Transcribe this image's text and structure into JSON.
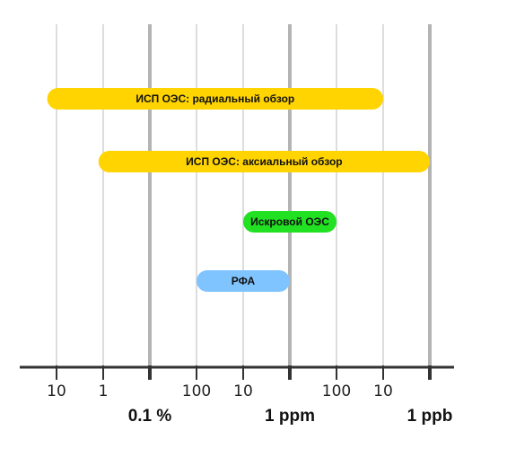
{
  "chart_data": {
    "type": "range-bar",
    "title": "",
    "xlabel": "",
    "ylabel": "",
    "x_axis": {
      "scale": "log-descending",
      "ticks": [
        {
          "label": "10",
          "kind": "minor"
        },
        {
          "label": "1",
          "kind": "minor"
        },
        {
          "label": "",
          "kind": "major"
        },
        {
          "label": "100",
          "kind": "minor"
        },
        {
          "label": "10",
          "kind": "minor"
        },
        {
          "label": "",
          "kind": "major"
        },
        {
          "label": "100",
          "kind": "minor"
        },
        {
          "label": "10",
          "kind": "minor"
        },
        {
          "label": "",
          "kind": "major"
        }
      ],
      "major_labels": [
        "0.1 %",
        "1 ppm",
        "1 ppb"
      ],
      "grid": true
    },
    "bars": [
      {
        "name": "ИСП ОЭС: радиальный обзор",
        "from_tick": -0.2,
        "to_tick": 7.0,
        "color": "#FFD400"
      },
      {
        "name": "ИСП ОЭС: аксиальный обзор",
        "from_tick": 0.9,
        "to_tick": 8.0,
        "color": "#FFD400"
      },
      {
        "name": "Искровой ОЭС",
        "from_tick": 4.0,
        "to_tick": 6.0,
        "color": "#22E022"
      },
      {
        "name": "РФА",
        "from_tick": 3.0,
        "to_tick": 5.0,
        "color": "#80C4FF"
      }
    ]
  }
}
